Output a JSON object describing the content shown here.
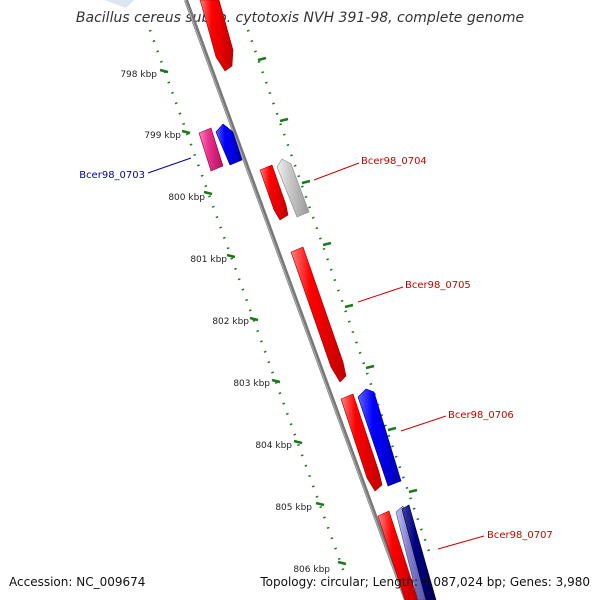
{
  "title": "Bacillus cereus subsp. cytotoxis NVH 391-98, complete genome",
  "footer": {
    "accession": "Accession: NC_009674",
    "info": "Topology: circular; Length: 4,087,024 bp; Genes: 3,980"
  },
  "ticks": [
    {
      "label": "798 kbp"
    },
    {
      "label": "799 kbp"
    },
    {
      "label": "800 kbp"
    },
    {
      "label": "801 kbp"
    },
    {
      "label": "802 kbp"
    },
    {
      "label": "803 kbp"
    },
    {
      "label": "804 kbp"
    },
    {
      "label": "805 kbp"
    },
    {
      "label": "806 kbp"
    }
  ],
  "genes": [
    {
      "label": "Bcer98_0703",
      "color": "#0000aa"
    },
    {
      "label": "Bcer98_0704",
      "color": "#cc0000"
    },
    {
      "label": "Bcer98_0705",
      "color": "#cc0000"
    },
    {
      "label": "Bcer98_0706",
      "color": "#cc0000"
    },
    {
      "label": "Bcer98_0707",
      "color": "#cc0000"
    }
  ],
  "colors": {
    "backbone": "#808080",
    "tick": "#1a7a1a",
    "forward_cds": "#ff0000",
    "reverse_cds": "#0000ff",
    "pink_feature": "#e8308a",
    "grey_feature": "#c0c0c0",
    "navy_feature": "#000080",
    "lavender_feature": "#8080cc"
  }
}
